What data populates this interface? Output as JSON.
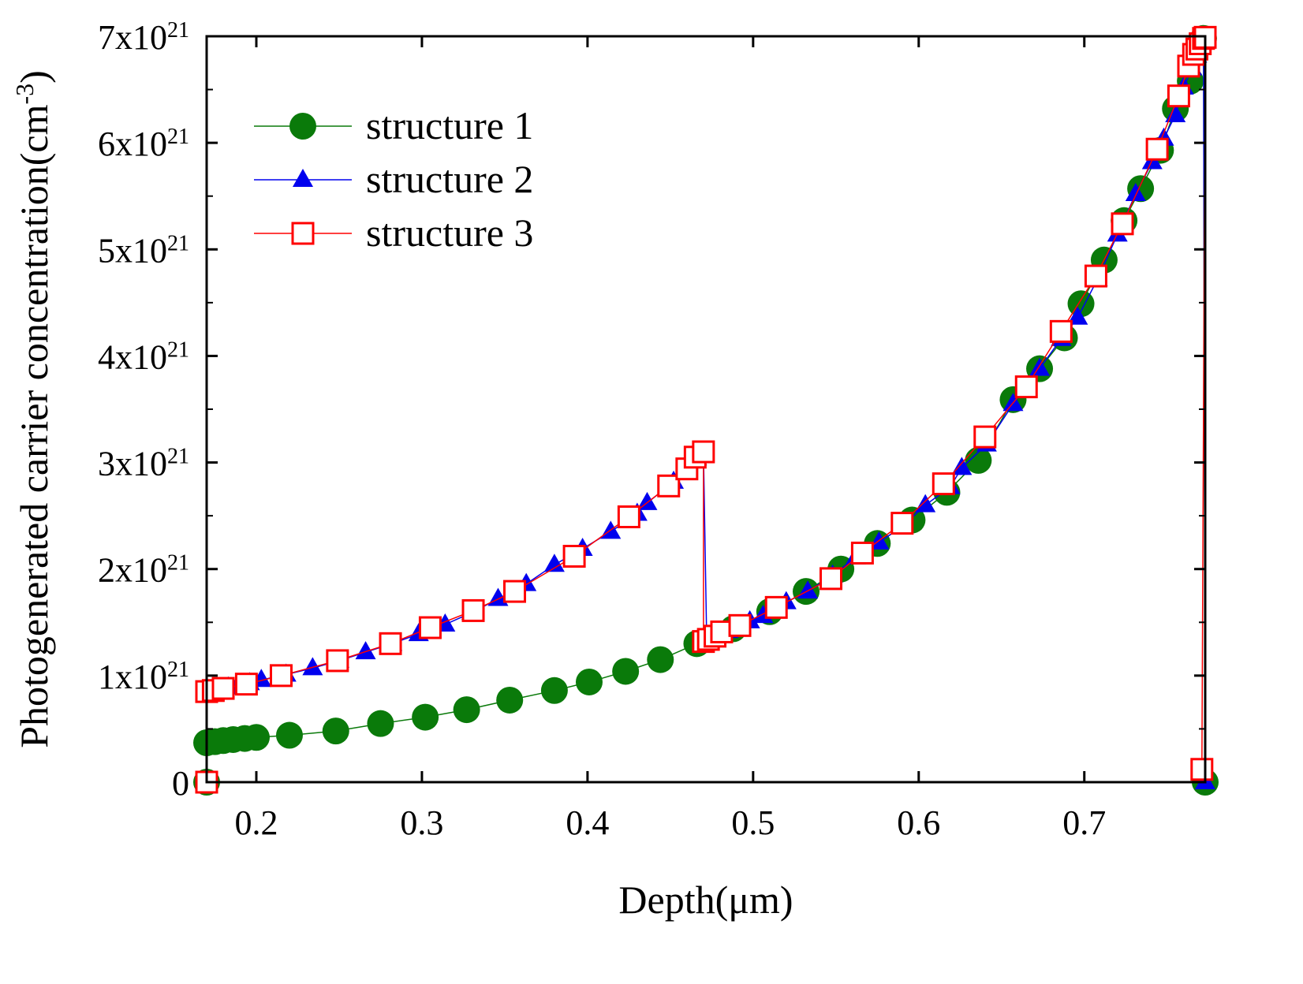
{
  "chart_data": {
    "type": "line",
    "title": "",
    "xlabel": "Depth(μm)",
    "ylabel": "Photogenerated carrier concentration(cm",
    "ylabel_exponent": "-3",
    "ylabel_close": ")",
    "xlim": [
      0.17,
      0.773
    ],
    "ylim": [
      0,
      7e+21
    ],
    "x_ticks": [
      0.2,
      0.3,
      0.4,
      0.5,
      0.6,
      0.7
    ],
    "x_tick_labels": [
      "0.2",
      "0.3",
      "0.4",
      "0.5",
      "0.6",
      "0.7"
    ],
    "y_ticks": [
      0,
      1e+21,
      2e+21,
      3e+21,
      4e+21,
      5e+21,
      6e+21,
      7e+21
    ],
    "y_tick_labels": [
      {
        "base": "0",
        "exp": ""
      },
      {
        "base": "1x10",
        "exp": "21"
      },
      {
        "base": "2x10",
        "exp": "21"
      },
      {
        "base": "3x10",
        "exp": "21"
      },
      {
        "base": "4x10",
        "exp": "21"
      },
      {
        "base": "5x10",
        "exp": "21"
      },
      {
        "base": "6x10",
        "exp": "21"
      },
      {
        "base": "7x10",
        "exp": "21"
      }
    ],
    "legend_position": "top-left",
    "grid": false,
    "series": [
      {
        "name": "structure 1",
        "color": "#0a7a0a",
        "marker": "circle",
        "x": [
          0.17,
          0.17,
          0.175,
          0.18,
          0.186,
          0.193,
          0.2,
          0.22,
          0.248,
          0.275,
          0.302,
          0.327,
          0.353,
          0.38,
          0.401,
          0.423,
          0.444,
          0.466,
          0.488,
          0.51,
          0.532,
          0.553,
          0.575,
          0.596,
          0.617,
          0.636,
          0.657,
          0.673,
          0.688,
          0.698,
          0.712,
          0.724,
          0.734,
          0.746,
          0.755,
          0.764,
          0.772,
          0.773
        ],
        "y": [
          0,
          3.7e+20,
          3.8e+20,
          3.9e+20,
          4e+20,
          4.1e+20,
          4.2e+20,
          4.4e+20,
          4.8e+20,
          5.5e+20,
          6.1e+20,
          6.8e+20,
          7.7e+20,
          8.6e+20,
          9.4e+20,
          1.04e+21,
          1.15e+21,
          1.3e+21,
          1.44e+21,
          1.6e+21,
          1.79e+21,
          2e+21,
          2.24e+21,
          2.46e+21,
          2.72e+21,
          3.02e+21,
          3.59e+21,
          3.88e+21,
          4.17e+21,
          4.49e+21,
          4.9e+21,
          5.27e+21,
          5.57e+21,
          5.93e+21,
          6.32e+21,
          6.58e+21,
          6.98e+21,
          0
        ]
      },
      {
        "name": "structure 2",
        "color": "#0000ee",
        "marker": "triangle",
        "x": [
          0.17,
          0.17,
          0.176,
          0.183,
          0.189,
          0.196,
          0.203,
          0.218,
          0.234,
          0.25,
          0.266,
          0.282,
          0.298,
          0.314,
          0.33,
          0.346,
          0.363,
          0.38,
          0.397,
          0.414,
          0.43,
          0.436,
          0.452,
          0.466,
          0.47,
          0.472,
          0.485,
          0.498,
          0.506,
          0.52,
          0.533,
          0.548,
          0.562,
          0.576,
          0.59,
          0.604,
          0.619,
          0.626,
          0.641,
          0.657,
          0.673,
          0.686,
          0.696,
          0.708,
          0.72,
          0.731,
          0.741,
          0.748,
          0.755,
          0.76,
          0.765,
          0.768,
          0.77,
          0.772,
          0.773
        ],
        "y": [
          0,
          8.5e+20,
          8.7e+20,
          8.9e+20,
          9.1e+20,
          9.3e+20,
          9.6e+20,
          1.01e+21,
          1.07e+21,
          1.14e+21,
          1.22e+21,
          1.3e+21,
          1.39e+21,
          1.48e+21,
          1.59e+21,
          1.72e+21,
          1.86e+21,
          2.04e+21,
          2.19e+21,
          2.35e+21,
          2.52e+21,
          2.62e+21,
          2.82e+21,
          3.04e+21,
          3.09e+21,
          1.32e+21,
          1.42e+21,
          1.51e+21,
          1.56e+21,
          1.69e+21,
          1.79e+21,
          1.94e+21,
          2.11e+21,
          2.25e+21,
          2.4e+21,
          2.6e+21,
          2.77e+21,
          2.95e+21,
          3.17e+21,
          3.55e+21,
          3.88e+21,
          4.16e+21,
          4.36e+21,
          4.72e+21,
          5.14e+21,
          5.52e+21,
          5.82e+21,
          6.04e+21,
          6.26e+21,
          6.52e+21,
          6.7e+21,
          6.82e+21,
          6.92e+21,
          6.98e+21,
          0
        ]
      },
      {
        "name": "structure 3",
        "color": "#ff0000",
        "marker": "square",
        "x": [
          0.17,
          0.17,
          0.174,
          0.18,
          0.194,
          0.215,
          0.249,
          0.281,
          0.305,
          0.331,
          0.356,
          0.392,
          0.425,
          0.449,
          0.46,
          0.465,
          0.47,
          0.47,
          0.473,
          0.477,
          0.481,
          0.492,
          0.514,
          0.547,
          0.566,
          0.59,
          0.615,
          0.64,
          0.665,
          0.686,
          0.707,
          0.723,
          0.744,
          0.757,
          0.763,
          0.766,
          0.768,
          0.77,
          0.772,
          0.773,
          0.771
        ],
        "y": [
          0,
          8.5e+20,
          8.6e+20,
          8.8e+20,
          9.2e+20,
          1e+21,
          1.14e+21,
          1.3e+21,
          1.45e+21,
          1.61e+21,
          1.79e+21,
          2.12e+21,
          2.49e+21,
          2.78e+21,
          2.94e+21,
          3.05e+21,
          3.1e+21,
          1.32e+21,
          1.34e+21,
          1.37e+21,
          1.41e+21,
          1.47e+21,
          1.64e+21,
          1.91e+21,
          2.15e+21,
          2.43e+21,
          2.8e+21,
          3.24e+21,
          3.71e+21,
          4.23e+21,
          4.75e+21,
          5.24e+21,
          5.94e+21,
          6.44e+21,
          6.72e+21,
          6.83e+21,
          6.88e+21,
          6.93e+21,
          6.98e+21,
          6.99e+21,
          1.2e+20
        ]
      }
    ]
  }
}
